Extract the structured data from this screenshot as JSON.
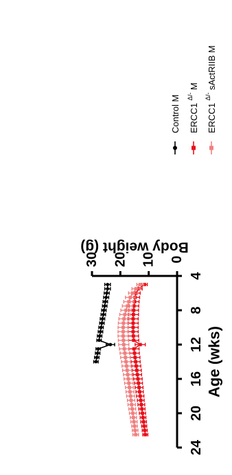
{
  "chart_data": {
    "type": "line",
    "orientation": "rotated-90",
    "xlabel": "Age (wks)",
    "ylabel": "Body weight (g)",
    "xlim": [
      4,
      24
    ],
    "ylim": [
      0,
      30
    ],
    "x_ticks": [
      "4",
      "8",
      "12",
      "16",
      "20",
      "24"
    ],
    "y_ticks": [
      "0",
      "10",
      "20",
      "30"
    ],
    "x_tick_values": [
      4,
      8,
      12,
      16,
      20,
      24
    ],
    "y_tick_values": [
      0,
      10,
      20,
      30
    ],
    "grid": false,
    "legend_position": "top-right",
    "series": [
      {
        "name": "Control M",
        "name_parts": {
          "base": "Control M",
          "sup": "",
          "suffix": ""
        },
        "color": "#000000",
        "marker": "circle",
        "x": [
          5,
          5.5,
          6,
          6.5,
          7,
          7.5,
          8,
          8.5,
          9,
          9.5,
          10,
          10.5,
          11,
          11.5,
          12,
          12.5,
          13,
          13.5,
          14
        ],
        "y": [
          24.5,
          24.5,
          24.8,
          25,
          25.3,
          25.5,
          25.8,
          26,
          26.3,
          26.5,
          26.8,
          27,
          27.3,
          27.5,
          23.5,
          27.8,
          28,
          28.3,
          28.6
        ],
        "err": [
          1,
          1,
          0.9,
          0.9,
          0.8,
          0.8,
          0.8,
          0.8,
          0.8,
          0.8,
          0.8,
          0.8,
          0.8,
          0.8,
          1.5,
          0.8,
          0.8,
          0.8,
          0.8
        ]
      },
      {
        "name": "ERCC1 Δ/- M",
        "name_parts": {
          "base": "ERCC1 ",
          "sup": "Δ/-",
          "suffix": " M"
        },
        "color": "#e8101a",
        "marker": "square",
        "x": [
          5,
          5.5,
          6,
          6.5,
          7,
          7.5,
          8,
          8.5,
          9,
          9.5,
          10,
          10.5,
          11,
          11.5,
          12,
          12.5,
          13,
          13.5,
          14,
          14.5,
          15,
          15.5,
          16,
          16.5,
          17,
          17.5,
          18,
          18.5,
          19,
          19.5,
          20,
          20.5,
          21,
          21.5,
          22,
          22.5
        ],
        "y": [
          11.5,
          13.5,
          14.5,
          14.8,
          15,
          15.2,
          15.3,
          15.4,
          15.5,
          15.5,
          15.5,
          15.5,
          15.4,
          15.3,
          13,
          15.2,
          15,
          14.8,
          14.6,
          14.4,
          14.2,
          14,
          13.8,
          13.6,
          13.4,
          13.2,
          13,
          12.8,
          12.6,
          12.4,
          12.2,
          12,
          11.8,
          11.6,
          11.4,
          11.2
        ],
        "err": [
          1,
          1.2,
          1.5,
          1.6,
          1.6,
          1.7,
          1.7,
          1.8,
          1.8,
          1.8,
          1.8,
          1.8,
          1.8,
          1.8,
          1.8,
          1.8,
          1.7,
          1.7,
          1.6,
          1.6,
          1.6,
          1.5,
          1.5,
          1.4,
          1.4,
          1.3,
          1.3,
          1.2,
          1.2,
          1.1,
          1.1,
          1,
          1,
          0.9,
          0.9,
          0.9
        ]
      },
      {
        "name": "ERCC1 Δ/- sActRIIB M",
        "name_parts": {
          "base": "ERCC1 ",
          "sup": "Δ/-",
          "suffix": " sActRIIB M"
        },
        "color": "#f08080",
        "marker": "square",
        "x": [
          5,
          5.5,
          6,
          6.5,
          7,
          7.5,
          8,
          8.5,
          9,
          9.5,
          10,
          10.5,
          11,
          11.5,
          12,
          12.5,
          13,
          13.5,
          14,
          14.5,
          15,
          15.5,
          16,
          16.5,
          17,
          17.5,
          18,
          18.5,
          19,
          19.5,
          20,
          20.5,
          21,
          21.5,
          22,
          22.5
        ],
        "y": [
          13,
          14.5,
          15.5,
          16.5,
          17,
          17.5,
          18,
          18.4,
          18.7,
          18.9,
          19,
          19,
          19,
          18.9,
          18.8,
          18.6,
          18.4,
          18.2,
          18,
          17.8,
          17.6,
          17.4,
          17.2,
          17,
          16.8,
          16.6,
          16.4,
          16.2,
          16,
          15.8,
          15.6,
          15.4,
          15.2,
          15,
          14.8,
          14.6
        ],
        "err": [
          1.2,
          1.4,
          1.6,
          1.7,
          1.8,
          1.8,
          1.8,
          1.8,
          1.8,
          1.8,
          1.8,
          1.8,
          1.8,
          1.8,
          1.8,
          1.7,
          1.7,
          1.7,
          1.6,
          1.6,
          1.6,
          1.5,
          1.5,
          1.5,
          1.4,
          1.4,
          1.4,
          1.3,
          1.3,
          1.2,
          1.2,
          1.1,
          1.1,
          1,
          1,
          1
        ]
      }
    ]
  }
}
